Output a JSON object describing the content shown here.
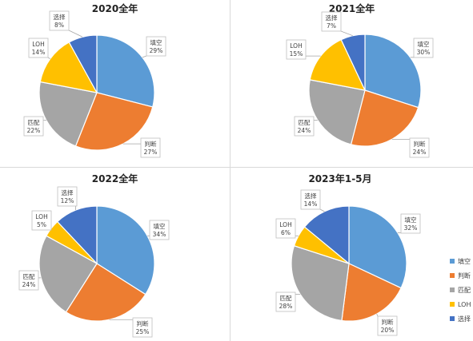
{
  "categories": [
    "填空",
    "判断",
    "匹配",
    "LOH",
    "选择"
  ],
  "colors": [
    "#5b9bd5",
    "#ed7d31",
    "#a5a5a5",
    "#ffc000",
    "#4472c4"
  ],
  "chart_data": [
    {
      "type": "pie",
      "title": "2020全年",
      "categories": [
        "填空",
        "判断",
        "匹配",
        "LOH",
        "选择"
      ],
      "values": [
        29,
        27,
        22,
        14,
        8
      ],
      "labels": [
        "29%",
        "27%",
        "22%",
        "14%",
        "8%"
      ]
    },
    {
      "type": "pie",
      "title": "2021全年",
      "categories": [
        "填空",
        "判断",
        "匹配",
        "LOH",
        "选择"
      ],
      "values": [
        30,
        24,
        24,
        15,
        7
      ],
      "labels": [
        "30%",
        "24%",
        "24%",
        "15%",
        "7%"
      ]
    },
    {
      "type": "pie",
      "title": "2022全年",
      "categories": [
        "填空",
        "判断",
        "匹配",
        "LOH",
        "选择"
      ],
      "values": [
        34,
        25,
        24,
        5,
        12
      ],
      "labels": [
        "34%",
        "25%",
        "24%",
        "5%",
        "12%"
      ]
    },
    {
      "type": "pie",
      "title": "2023年1-5月",
      "categories": [
        "填空",
        "判断",
        "匹配",
        "LOH",
        "选择"
      ],
      "values": [
        32,
        20,
        28,
        6,
        14
      ],
      "labels": [
        "32%",
        "20%",
        "28%",
        "6%",
        "14%"
      ],
      "legend": "right"
    }
  ]
}
